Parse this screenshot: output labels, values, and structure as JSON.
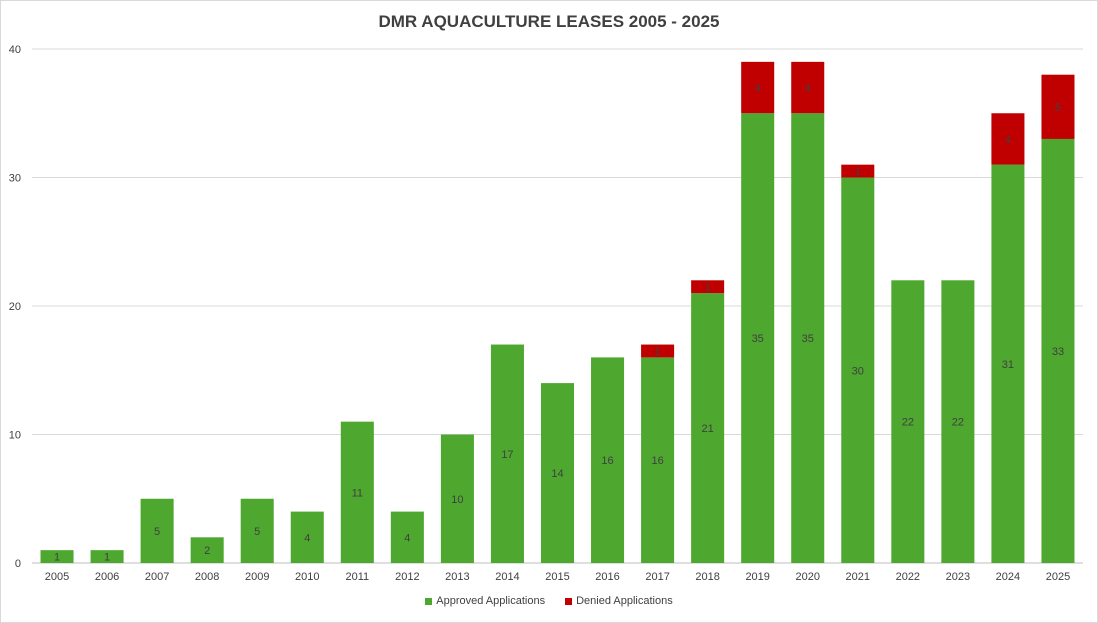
{
  "chart_data": {
    "type": "bar",
    "stacked": true,
    "title": "DMR AQUACULTURE LEASES 2005 - 2025",
    "categories": [
      "2005",
      "2006",
      "2007",
      "2008",
      "2009",
      "2010",
      "2011",
      "2012",
      "2013",
      "2014",
      "2015",
      "2016",
      "2017",
      "2018",
      "2019",
      "2020",
      "2021",
      "2022",
      "2023",
      "2024",
      "2025"
    ],
    "series": [
      {
        "name": "Approved Applications",
        "color": "#4ea72e",
        "values": [
          1,
          1,
          5,
          2,
          5,
          4,
          11,
          4,
          10,
          17,
          14,
          16,
          16,
          21,
          35,
          35,
          30,
          22,
          22,
          31,
          33
        ]
      },
      {
        "name": "Denied Applications",
        "color": "#c00000",
        "values": [
          0,
          0,
          0,
          0,
          0,
          0,
          0,
          0,
          0,
          0,
          0,
          0,
          1,
          1,
          4,
          4,
          1,
          0,
          0,
          4,
          5
        ]
      }
    ],
    "ylim": [
      0,
      40
    ],
    "yticks": [
      0,
      10,
      20,
      30,
      40
    ],
    "legend_position": "bottom",
    "xlabel": "",
    "ylabel": ""
  }
}
